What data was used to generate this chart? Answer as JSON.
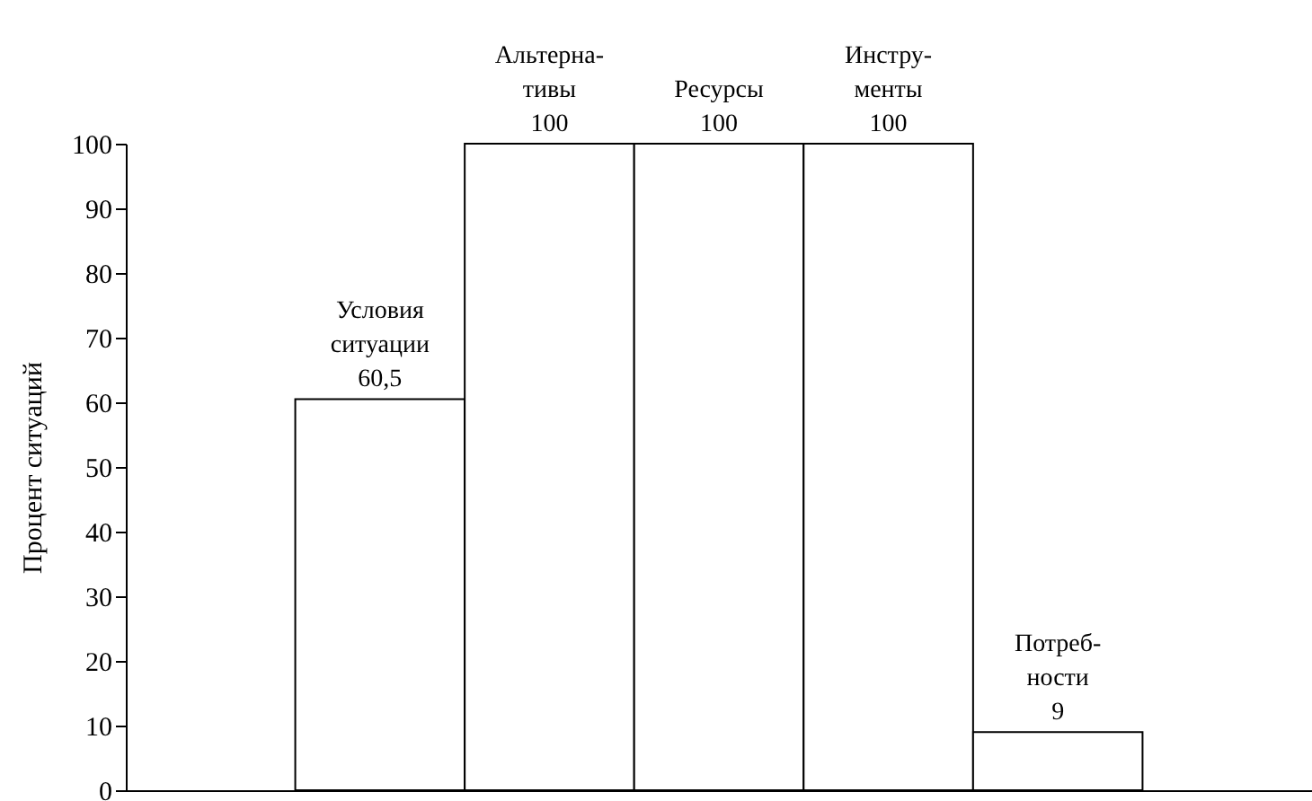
{
  "chart_data": {
    "type": "bar",
    "ylabel": "Процент ситуаций",
    "categories": [
      null,
      "Условия\nситуации",
      "Альтерна-\nтивы",
      "Ресурсы",
      "Инстру-\nменты",
      "Потреб-\nности",
      null
    ],
    "values": [
      null,
      60.5,
      100,
      100,
      100,
      9,
      null
    ],
    "value_labels": [
      null,
      "60,5",
      "100",
      "100",
      "100",
      "9",
      null
    ],
    "color": "#ffffff",
    "ylim": [
      0,
      100
    ],
    "yticks": [
      0,
      10,
      20,
      30,
      40,
      50,
      60,
      70,
      80,
      90,
      100
    ],
    "tick_labels": "y"
  }
}
